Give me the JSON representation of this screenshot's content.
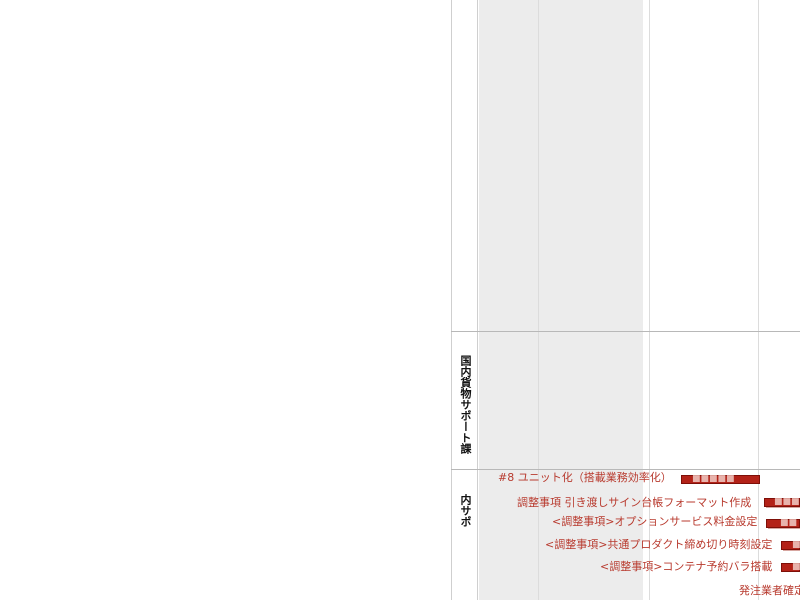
{
  "lanes": [
    {
      "label": "国内貨物サポート課"
    },
    {
      "label": "内サポ"
    }
  ],
  "tasks": [
    {
      "label": "#8 ユニット化（搭載業務効率化）",
      "bar_text": "■■■■■"
    },
    {
      "label": "調整事項 引き渡しサイン台帳フォーマット作成",
      "bar_text": "■■■"
    },
    {
      "label": "<調整事項>オプションサービス料金設定",
      "bar_text": "■■"
    },
    {
      "label": "<調整事項>共通プロダクト締め切り時刻設定",
      "bar_text": "■"
    },
    {
      "label": "<調整事項>コンテナ予約バラ搭載",
      "bar_text": "■"
    },
    {
      "label": "発注業者確定",
      "bar_text": ""
    }
  ],
  "colors": {
    "task_text": "#b83a2e",
    "bar_fill": "#b32218",
    "shade": "#ececec",
    "divider": "#b8b8b8"
  }
}
